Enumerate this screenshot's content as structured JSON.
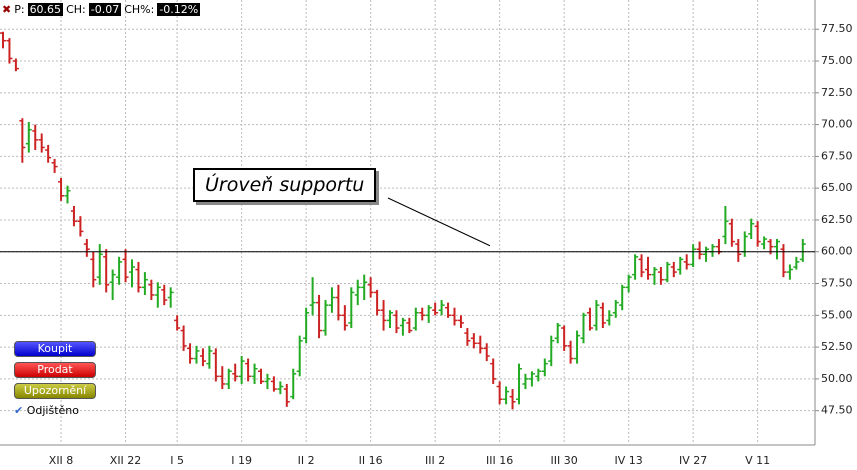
{
  "header": {
    "p_label": "P:",
    "p_value": "60.65",
    "ch_label": "CH:",
    "ch_value": "-0.07",
    "chp_label": "CH%:",
    "chp_value": "-0.12%"
  },
  "buttons": {
    "buy": "Koupit",
    "sell": "Prodat",
    "alert": "Upozornění",
    "lock": "Odjištěno"
  },
  "chart_data": {
    "type": "ohlc",
    "annotation": "Úroveň supportu",
    "support_level": 60,
    "up_color": "#22aa22",
    "down_color": "#cc2222",
    "grid": true,
    "ylim": [
      44.8,
      79.8
    ],
    "yticks": [
      {
        "value": 47.5,
        "label": "47.50"
      },
      {
        "value": 50,
        "label": "50.00"
      },
      {
        "value": 52.5,
        "label": "52.50"
      },
      {
        "value": 55,
        "label": "55.00"
      },
      {
        "value": 57.5,
        "label": "57.50"
      },
      {
        "value": 60,
        "label": "60.00"
      },
      {
        "value": 62.5,
        "label": "62.50"
      },
      {
        "value": 65,
        "label": "65.00"
      },
      {
        "value": 67.5,
        "label": "67.50"
      },
      {
        "value": 70,
        "label": "70.00"
      },
      {
        "value": 72.5,
        "label": "72.50"
      },
      {
        "value": 75,
        "label": "75.00"
      },
      {
        "value": 77.5,
        "label": "77.50"
      }
    ],
    "categories": [
      null,
      null,
      null,
      null,
      null,
      null,
      null,
      null,
      null,
      "XII 8",
      null,
      null,
      null,
      null,
      null,
      null,
      null,
      null,
      null,
      "XII 22",
      null,
      null,
      null,
      null,
      null,
      null,
      null,
      "I 5",
      null,
      null,
      null,
      null,
      null,
      null,
      null,
      null,
      null,
      "I 19",
      null,
      null,
      null,
      null,
      null,
      null,
      null,
      null,
      null,
      "II 2",
      null,
      null,
      null,
      null,
      null,
      null,
      null,
      null,
      null,
      "II 16",
      null,
      null,
      null,
      null,
      null,
      null,
      null,
      null,
      null,
      "III 2",
      null,
      null,
      null,
      null,
      null,
      null,
      null,
      null,
      null,
      "III 16",
      null,
      null,
      null,
      null,
      null,
      null,
      null,
      null,
      null,
      "III 30",
      null,
      null,
      null,
      null,
      null,
      null,
      null,
      null,
      null,
      "IV 13",
      null,
      null,
      null,
      null,
      null,
      null,
      null,
      null,
      null,
      "IV 27",
      null,
      null,
      null,
      null,
      null,
      null,
      null,
      null,
      null,
      "V 11",
      null,
      null,
      null,
      null,
      null,
      null,
      null
    ],
    "open": [
      77.2,
      76.6,
      75.0,
      70.3,
      68.5,
      69.5,
      68.8,
      68.0,
      67.0,
      65.5,
      64.4,
      63.2,
      62.4,
      60.6,
      59.4,
      58.0,
      59.6,
      57.6,
      58.0,
      59.4,
      58.4,
      58.6,
      57.2,
      57.4,
      56.6,
      57.0,
      56.4,
      54.6,
      53.8,
      52.4,
      51.6,
      51.8,
      51.2,
      52.0,
      50.2,
      49.6,
      50.4,
      50.2,
      51.2,
      50.2,
      50.6,
      49.8,
      49.8,
      49.2,
      49.2,
      48.6,
      50.6,
      53.2,
      55.8,
      56.0,
      53.8,
      55.8,
      56.4,
      55.0,
      54.4,
      56.6,
      57.2,
      57.4,
      56.8,
      55.4,
      54.6,
      55.0,
      54.2,
      54.4,
      54.0,
      55.2,
      55.0,
      55.4,
      55.4,
      55.6,
      55.0,
      54.6,
      53.6,
      53.2,
      52.8,
      52.4,
      51.2,
      49.4,
      48.4,
      48.6,
      48.4,
      49.6,
      50.0,
      50.2,
      50.6,
      51.4,
      53.2,
      54.0,
      52.6,
      51.6,
      53.2,
      55.2,
      54.2,
      55.6,
      54.6,
      55.2,
      55.8,
      57.2,
      58.2,
      59.4,
      58.6,
      58.2,
      58.4,
      57.8,
      58.8,
      58.6,
      59.2,
      59.0,
      60.2,
      59.8,
      60.0,
      60.4,
      61.2,
      62.2,
      60.6,
      60.0,
      61.4,
      62.0,
      60.6,
      60.8,
      60.4,
      60.2,
      58.4,
      58.8,
      59.4
    ],
    "high": [
      77.3,
      76.8,
      75.2,
      70.5,
      70.2,
      70.0,
      69.3,
      68.4,
      67.3,
      65.8,
      65.2,
      63.6,
      62.8,
      61.0,
      60.0,
      60.6,
      60.2,
      58.6,
      59.6,
      60.2,
      59.4,
      59.2,
      58.4,
      57.8,
      57.6,
      57.4,
      57.2,
      55.0,
      54.2,
      52.8,
      52.6,
      52.4,
      52.6,
      52.4,
      51.0,
      50.8,
      51.2,
      51.8,
      51.6,
      51.2,
      50.8,
      50.4,
      50.2,
      49.8,
      49.6,
      50.8,
      53.4,
      55.6,
      58.0,
      56.6,
      56.2,
      57.2,
      57.4,
      55.8,
      57.2,
      57.8,
      58.2,
      58.0,
      57.0,
      56.2,
      55.4,
      55.4,
      54.8,
      54.8,
      55.6,
      55.6,
      55.8,
      56.0,
      56.2,
      56.0,
      55.6,
      55.0,
      54.0,
      53.6,
      53.4,
      52.8,
      51.6,
      49.8,
      49.4,
      49.2,
      51.2,
      50.4,
      50.6,
      50.8,
      51.6,
      53.4,
      54.4,
      54.2,
      53.0,
      53.8,
      55.2,
      55.6,
      56.2,
      56.0,
      55.4,
      56.2,
      57.4,
      58.2,
      59.8,
      59.8,
      59.6,
      58.8,
      58.8,
      59.2,
      59.2,
      59.6,
      59.8,
      60.6,
      60.8,
      60.4,
      60.6,
      61.0,
      63.6,
      62.6,
      61.0,
      61.6,
      62.6,
      62.4,
      61.2,
      61.0,
      61.0,
      60.6,
      59.0,
      59.6,
      61.0
    ],
    "low": [
      76.0,
      74.8,
      74.2,
      67.0,
      67.8,
      68.0,
      67.8,
      67.0,
      66.2,
      64.0,
      63.8,
      62.0,
      61.2,
      59.6,
      57.2,
      57.4,
      56.8,
      56.2,
      57.4,
      57.6,
      57.2,
      56.8,
      56.6,
      56.2,
      55.6,
      55.8,
      55.6,
      53.8,
      52.2,
      51.2,
      51.2,
      51.0,
      50.8,
      49.8,
      49.2,
      49.2,
      49.8,
      49.6,
      49.8,
      49.6,
      49.6,
      49.2,
      49.0,
      48.8,
      47.8,
      48.4,
      50.2,
      52.8,
      55.0,
      53.2,
      53.4,
      55.2,
      54.6,
      53.8,
      54.0,
      55.8,
      56.2,
      56.4,
      55.0,
      53.8,
      54.0,
      53.6,
      53.4,
      53.6,
      53.8,
      54.6,
      54.4,
      55.0,
      55.0,
      54.8,
      54.2,
      54.0,
      52.6,
      52.4,
      52.0,
      51.4,
      49.6,
      48.0,
      48.0,
      47.6,
      48.0,
      49.2,
      49.4,
      49.8,
      50.2,
      51.0,
      52.8,
      52.2,
      51.2,
      51.2,
      52.8,
      53.8,
      53.8,
      54.0,
      54.2,
      54.8,
      55.4,
      56.8,
      57.8,
      58.0,
      57.8,
      57.4,
      57.4,
      57.6,
      58.0,
      58.2,
      58.6,
      58.8,
      59.4,
      59.2,
      59.6,
      59.8,
      60.6,
      60.4,
      59.2,
      59.6,
      61.0,
      60.4,
      60.2,
      59.8,
      59.4,
      58.0,
      57.8,
      58.6,
      59.2
    ],
    "close": [
      76.6,
      75.2,
      74.4,
      68.2,
      69.6,
      68.8,
      68.2,
      67.4,
      66.7,
      64.4,
      64.8,
      62.4,
      61.6,
      60.2,
      57.8,
      59.8,
      57.4,
      58.2,
      59.2,
      58.0,
      58.8,
      57.2,
      57.8,
      56.6,
      57.2,
      56.2,
      56.8,
      54.0,
      52.6,
      51.6,
      52.2,
      51.4,
      52.2,
      50.2,
      49.6,
      50.6,
      50.2,
      51.4,
      50.2,
      50.8,
      49.8,
      50.0,
      49.2,
      49.4,
      48.2,
      50.4,
      53.0,
      55.2,
      56.0,
      53.8,
      55.8,
      56.4,
      55.0,
      54.2,
      56.8,
      57.2,
      57.6,
      56.8,
      55.4,
      54.6,
      55.2,
      54.0,
      54.6,
      53.8,
      55.2,
      55.0,
      55.6,
      55.2,
      55.8,
      55.0,
      54.6,
      54.4,
      53.0,
      52.8,
      52.4,
      51.8,
      50.0,
      48.4,
      49.0,
      48.2,
      50.8,
      50.0,
      50.4,
      50.6,
      51.2,
      53.0,
      54.2,
      52.6,
      51.6,
      53.4,
      55.0,
      54.0,
      55.8,
      54.4,
      55.0,
      56.0,
      57.2,
      58.0,
      59.6,
      58.4,
      58.2,
      58.6,
      57.8,
      59.0,
      58.4,
      59.4,
      59.0,
      60.2,
      59.8,
      60.2,
      60.4,
      60.0,
      62.4,
      60.8,
      59.8,
      61.2,
      62.2,
      60.8,
      61.0,
      60.4,
      60.8,
      58.4,
      58.6,
      59.2,
      60.6
    ]
  }
}
